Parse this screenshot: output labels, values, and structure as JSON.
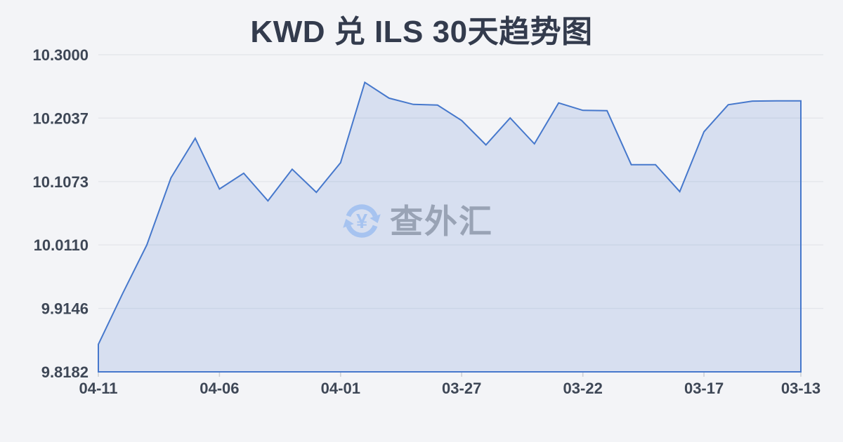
{
  "title": "KWD 兑 ILS 30天趋势图",
  "watermark": {
    "icon": "currency-refresh-icon",
    "text": "查外汇"
  },
  "colors": {
    "background": "#f3f4f7",
    "title": "#333b4d",
    "axis_label": "#3e4756",
    "gridline": "#e4e6eb",
    "tick": "#cdd0d6",
    "line": "#4678cc",
    "area_fill": "rgba(70,120,204,0.16)",
    "watermark_text": "#99a3b5",
    "watermark_icon": "#a6c3f0"
  },
  "chart_data": {
    "type": "area",
    "title": "KWD 兑 ILS 30天趋势图",
    "x": [
      "04-11",
      "04-10",
      "04-09",
      "04-08",
      "04-07",
      "04-06",
      "04-05",
      "04-04",
      "04-03",
      "04-02",
      "04-01",
      "03-31",
      "03-30",
      "03-29",
      "03-28",
      "03-27",
      "03-26",
      "03-25",
      "03-24",
      "03-23",
      "03-22",
      "03-21",
      "03-20",
      "03-19",
      "03-18",
      "03-17",
      "03-16",
      "03-15",
      "03-14",
      "03-13"
    ],
    "values": [
      9.86,
      9.937,
      10.011,
      10.113,
      10.173,
      10.096,
      10.12,
      10.078,
      10.126,
      10.091,
      10.136,
      10.258,
      10.234,
      10.2245,
      10.2235,
      10.2,
      10.163,
      10.204,
      10.1646,
      10.2268,
      10.2155,
      10.215,
      10.133,
      10.133,
      10.092,
      10.183,
      10.224,
      10.2295,
      10.23,
      10.23
    ],
    "x_tick_indices": [
      0,
      5,
      10,
      15,
      20,
      25,
      29
    ],
    "x_tick_labels": [
      "04-11",
      "04-06",
      "04-01",
      "03-27",
      "03-22",
      "03-17",
      "03-13"
    ],
    "y_axis": {
      "min": 9.8182,
      "max": 10.3,
      "tick_labels": [
        "10.3000",
        "10.2037",
        "10.1073",
        "10.0110",
        "9.9146",
        "9.8182"
      ],
      "tick_values": [
        10.3,
        10.2037,
        10.1073,
        10.011,
        9.9146,
        9.8182
      ]
    },
    "grid": true,
    "legend": false
  }
}
